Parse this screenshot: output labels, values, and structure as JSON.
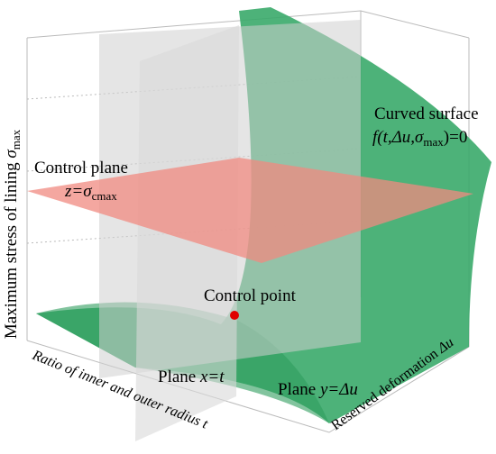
{
  "z_axis_label": {
    "text": "Maximum stress of lining ",
    "symbol": "σ",
    "subscript": "max"
  },
  "x_axis_label": {
    "text": "Ratio of inner and outer radius ",
    "symbol": "t"
  },
  "y_axis_label": {
    "text": "Reserved deformation ",
    "symbol": "Δu"
  },
  "curved_surface": {
    "title": "Curved surface",
    "formula_start": "f(t,Δu,σ",
    "formula_subscript": "max",
    "formula_end": ")=0"
  },
  "control_plane": {
    "title": "Control plane",
    "formula": "z=σ",
    "formula_subscript": "cmax"
  },
  "control_point": "Control point",
  "plane_x": {
    "word": "Plane ",
    "formula": "x=t"
  },
  "plane_y": {
    "word": "Plane ",
    "formula": "y=Δu"
  }
}
